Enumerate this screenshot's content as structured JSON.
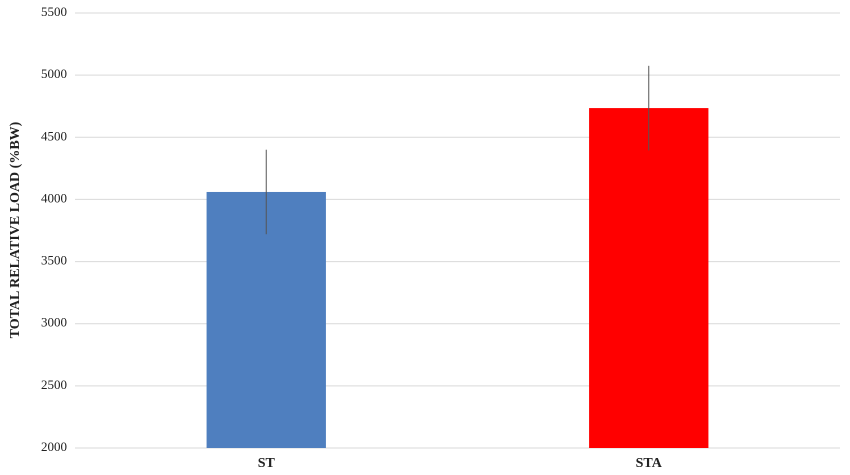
{
  "chart_data": {
    "type": "bar",
    "y_label": "TOTAL RELATIVE LOAD (%BW)",
    "categories": [
      "ST",
      "STA"
    ],
    "values": [
      4060,
      4735
    ],
    "errors": [
      340,
      340
    ],
    "colors": [
      "#4f7fbf",
      "#ff0000"
    ],
    "ylim": [
      2000,
      5500
    ],
    "yticks": [
      2000,
      2500,
      3000,
      3500,
      4000,
      4500,
      5000,
      5500
    ],
    "grid": true
  }
}
